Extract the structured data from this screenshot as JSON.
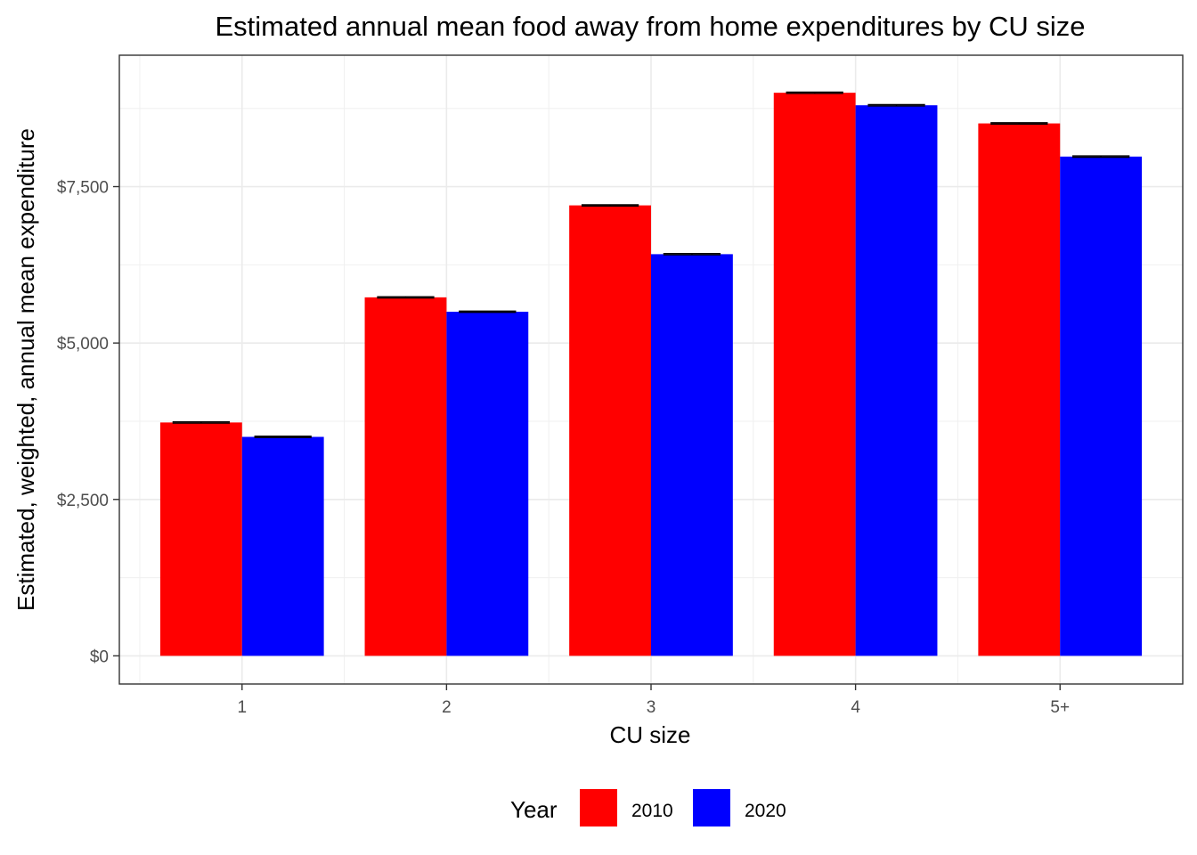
{
  "chart_data": {
    "type": "bar",
    "title": "Estimated annual mean food away from home expenditures by CU size",
    "xlabel": "CU size",
    "ylabel": "Estimated, weighted, annual mean expenditure",
    "categories": [
      "1",
      "2",
      "3",
      "4",
      "5+"
    ],
    "series": [
      {
        "name": "2010",
        "color": "#ff0000",
        "values": [
          3730,
          5730,
          7200,
          9000,
          8510
        ],
        "error": [
          10,
          10,
          10,
          10,
          10
        ]
      },
      {
        "name": "2020",
        "color": "#0000ff",
        "values": [
          3500,
          5500,
          6420,
          8800,
          7980
        ],
        "error": [
          10,
          10,
          10,
          10,
          10
        ]
      }
    ],
    "ylim": [
      -450,
      9600
    ],
    "yticks": [
      0,
      2500,
      5000,
      7500
    ],
    "ytick_labels": [
      "$0",
      "$2,500",
      "$5,000",
      "$7,500"
    ],
    "yminor": [
      1250,
      3750,
      6250,
      8750
    ],
    "grid": true,
    "legend": {
      "title": "Year",
      "position": "bottom"
    }
  }
}
